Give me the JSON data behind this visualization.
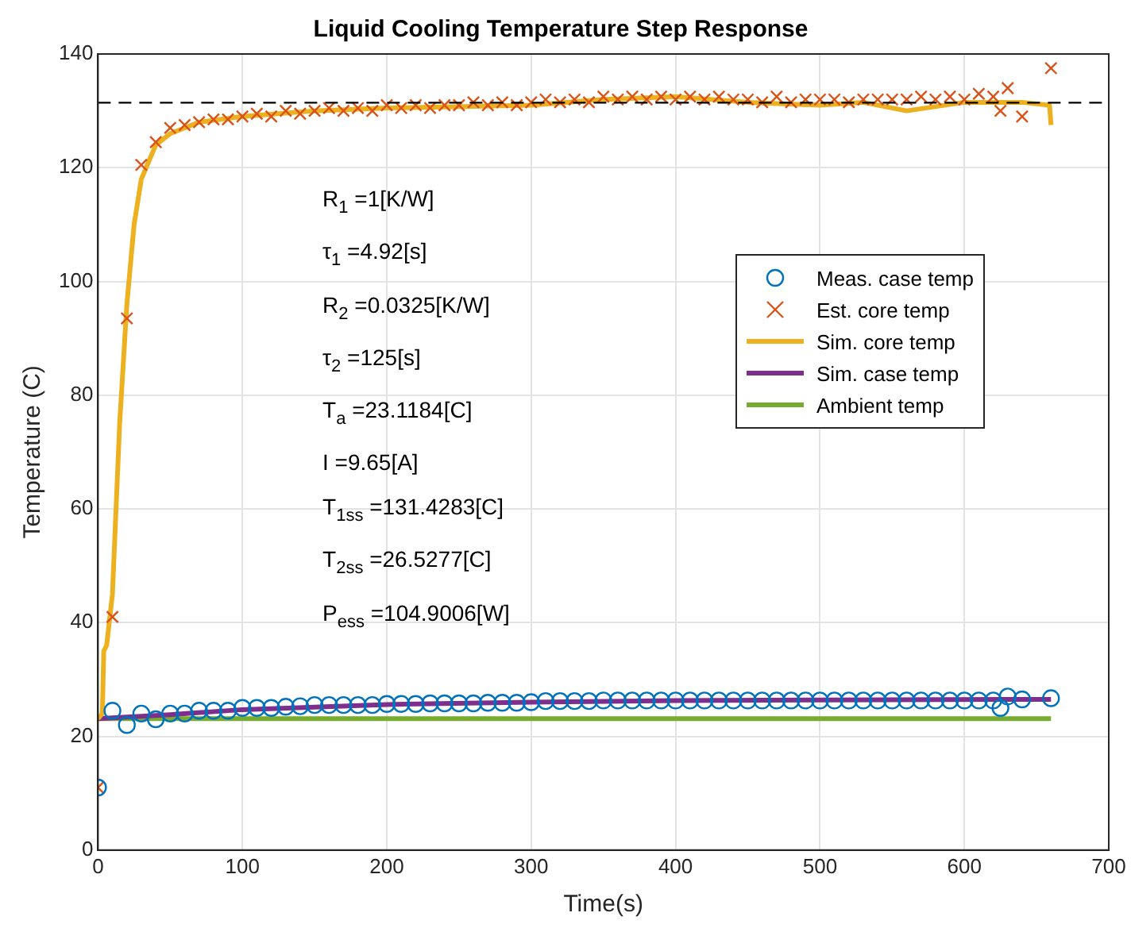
{
  "chart_data": {
    "type": "line",
    "title": "Liquid Cooling Temperature Step Response",
    "xlabel": "Time(s)",
    "ylabel": "Temperature (C)",
    "xlim": [
      0,
      700
    ],
    "xticks": [
      0,
      100,
      200,
      300,
      400,
      500,
      600,
      700
    ],
    "ylim": [
      0,
      140
    ],
    "yticks": [
      0,
      20,
      40,
      60,
      80,
      100,
      120,
      140
    ],
    "grid": true,
    "legend": "right",
    "series": [
      {
        "name": "Meas. case temp",
        "type": "scatter",
        "marker": "circle",
        "color": "#0072bd",
        "x": [
          0,
          10,
          20,
          30,
          40,
          50,
          60,
          70,
          80,
          90,
          100,
          110,
          120,
          130,
          140,
          150,
          160,
          170,
          180,
          190,
          200,
          210,
          220,
          230,
          240,
          250,
          260,
          270,
          280,
          290,
          300,
          310,
          320,
          330,
          340,
          350,
          360,
          370,
          380,
          390,
          400,
          410,
          420,
          430,
          440,
          450,
          460,
          470,
          480,
          490,
          500,
          510,
          520,
          530,
          540,
          550,
          560,
          570,
          580,
          590,
          600,
          610,
          620,
          625,
          630,
          640,
          660
        ],
        "values": [
          11,
          24.5,
          22,
          24,
          23,
          24,
          24,
          24.5,
          24.5,
          24.5,
          25,
          25,
          25,
          25.2,
          25.3,
          25.5,
          25.5,
          25.5,
          25.5,
          25.5,
          25.7,
          25.7,
          25.7,
          25.8,
          25.8,
          25.8,
          25.8,
          25.9,
          25.9,
          25.9,
          26,
          26.2,
          26.2,
          26.2,
          26.2,
          26.3,
          26.3,
          26.3,
          26.3,
          26.3,
          26.3,
          26.3,
          26.3,
          26.3,
          26.3,
          26.3,
          26.3,
          26.3,
          26.3,
          26.3,
          26.3,
          26.3,
          26.3,
          26.3,
          26.3,
          26.3,
          26.3,
          26.3,
          26.3,
          26.3,
          26.3,
          26.3,
          26.3,
          25,
          27,
          26.5,
          26.7
        ]
      },
      {
        "name": "Est. core temp",
        "type": "scatter",
        "marker": "cross",
        "color": "#d95319",
        "x": [
          0,
          10,
          20,
          30,
          40,
          50,
          60,
          70,
          80,
          90,
          100,
          110,
          120,
          130,
          140,
          150,
          160,
          170,
          180,
          190,
          200,
          210,
          220,
          230,
          240,
          250,
          260,
          270,
          280,
          290,
          300,
          310,
          320,
          330,
          340,
          350,
          360,
          370,
          380,
          390,
          400,
          410,
          420,
          430,
          440,
          450,
          460,
          470,
          480,
          490,
          500,
          510,
          520,
          530,
          540,
          550,
          560,
          570,
          580,
          590,
          600,
          610,
          620,
          625,
          630,
          640,
          660
        ],
        "values": [
          11,
          41,
          93.5,
          120.5,
          124.5,
          127,
          127.5,
          128,
          128.5,
          128.5,
          129,
          129.5,
          129,
          130,
          129.5,
          130,
          130.5,
          130,
          130.5,
          130,
          131,
          130.5,
          131,
          130.5,
          131,
          131,
          131.5,
          131,
          131.5,
          131,
          131.5,
          132,
          131.5,
          132,
          131.5,
          132.5,
          132,
          132.5,
          132,
          132.5,
          132,
          132.5,
          132,
          132.5,
          132,
          132,
          131.5,
          132.5,
          131.5,
          132,
          132,
          132,
          131.5,
          132,
          132,
          132,
          132,
          132.5,
          132,
          132.5,
          132,
          133,
          132.5,
          130,
          134,
          129,
          137.5
        ]
      },
      {
        "name": "Sim. core temp",
        "type": "line",
        "marker": "none",
        "color": "#edb120",
        "x": [
          0,
          3,
          4,
          6,
          10,
          15,
          20,
          25,
          30,
          40,
          50,
          70,
          100,
          150,
          200,
          300,
          350,
          400,
          450,
          500,
          530,
          560,
          600,
          640,
          659,
          660
        ],
        "values": [
          23.1,
          24,
          35,
          36,
          45,
          75,
          96,
          110,
          118,
          124,
          126,
          128,
          129,
          130,
          130.5,
          131,
          132,
          132.5,
          131.5,
          131,
          131.5,
          130,
          131.5,
          131.5,
          131,
          127.5
        ]
      },
      {
        "name": "Sim. case temp",
        "type": "line",
        "marker": "none",
        "color": "#7e2f8e",
        "x": [
          0,
          50,
          100,
          200,
          300,
          400,
          500,
          660
        ],
        "values": [
          23.1,
          23.8,
          24.7,
          25.6,
          26,
          26.3,
          26.4,
          26.5
        ]
      },
      {
        "name": "Ambient temp",
        "type": "line",
        "marker": "none",
        "color": "#77ac30",
        "x": [
          0,
          660
        ],
        "values": [
          23.1,
          23.1
        ]
      }
    ],
    "ref_lines": [
      {
        "axis": "y",
        "value": 131.4283,
        "color": "#000000",
        "line_style": "dashed"
      }
    ],
    "annotations": [
      "R$_{1}$ =1[K/W]",
      "τ$_{1}$ =4.92[s]",
      "R$_{2}$ =0.0325[K/W]",
      "τ$_{2}$ =125[s]",
      "T$_{a}$ =23.1184[C]",
      "I =9.65[A]",
      "T$_{1}$$_{ss}$ =131.4283[C]",
      "T$_{2}$$_{ss}$ =26.5277[C]",
      "P$_{e}$$_{ss}$ =104.9006[W]"
    ]
  }
}
